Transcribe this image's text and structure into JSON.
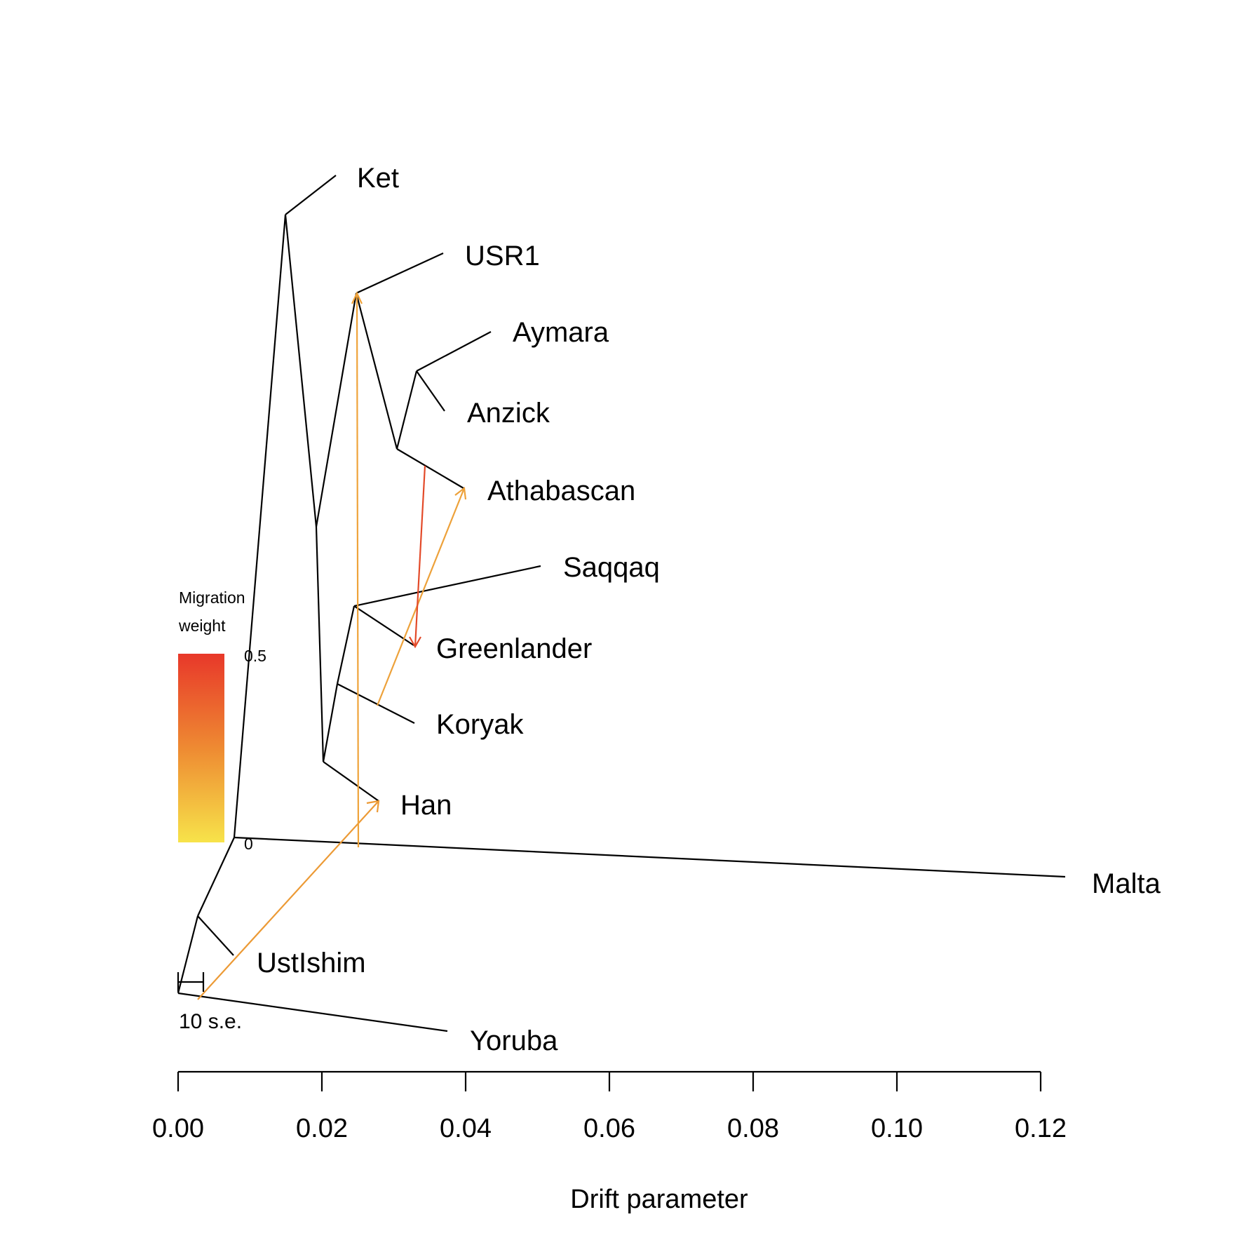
{
  "tree": {
    "taxa": [
      {
        "name": "Ket"
      },
      {
        "name": "USR1"
      },
      {
        "name": "Aymara"
      },
      {
        "name": "Anzick"
      },
      {
        "name": "Athabascan"
      },
      {
        "name": "Saqqaq"
      },
      {
        "name": "Greenlander"
      },
      {
        "name": "Koryak"
      },
      {
        "name": "Han"
      },
      {
        "name": "Malta"
      },
      {
        "name": "UstIshim"
      },
      {
        "name": "Yoruba"
      }
    ],
    "migration_edges": [
      {
        "from": "Yoruba root branch",
        "to": "Han",
        "color": "#ec9a35"
      },
      {
        "from": "Malta branch",
        "to": "USR1",
        "color": "#efa33a"
      },
      {
        "from": "Koryak branch",
        "to": "Athabascan",
        "color": "#eda13a"
      },
      {
        "from": "Athabascan branch",
        "to": "Greenlander",
        "color": "#e34a29"
      }
    ]
  },
  "axis": {
    "title": "Drift parameter",
    "ticks": [
      "0.00",
      "0.02",
      "0.04",
      "0.06",
      "0.08",
      "0.10",
      "0.12"
    ]
  },
  "legend": {
    "title_line1": "Migration",
    "title_line2": "weight",
    "max_label": "0.5",
    "min_label": "0",
    "color_high": "#e8382a",
    "color_mid": "#ee8a32",
    "color_low": "#f7e34a"
  },
  "scale_bar": {
    "label": "10 s.e."
  }
}
